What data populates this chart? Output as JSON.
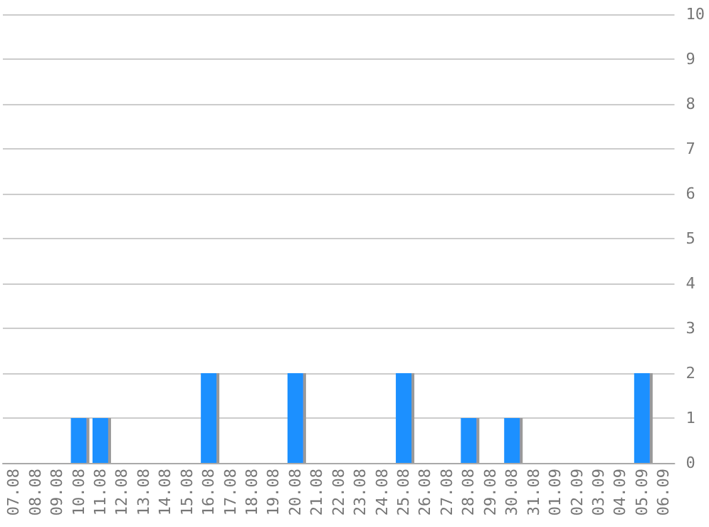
{
  "chart_data": {
    "type": "bar",
    "categories": [
      "07.08",
      "08.08",
      "09.08",
      "10.08",
      "11.08",
      "12.08",
      "13.08",
      "14.08",
      "15.08",
      "16.08",
      "17.08",
      "18.08",
      "19.08",
      "20.08",
      "21.08",
      "22.08",
      "23.08",
      "24.08",
      "25.08",
      "26.08",
      "27.08",
      "28.08",
      "29.08",
      "30.08",
      "31.08",
      "01.09",
      "02.09",
      "03.09",
      "04.09",
      "05.09",
      "06.09"
    ],
    "values": [
      0,
      0,
      0,
      1,
      1,
      0,
      0,
      0,
      0,
      2,
      0,
      0,
      0,
      2,
      0,
      0,
      0,
      0,
      2,
      0,
      0,
      1,
      0,
      1,
      0,
      0,
      0,
      0,
      0,
      2,
      0
    ],
    "color": "#1e90ff",
    "ylim": [
      0,
      10
    ],
    "yticks": [
      0,
      1,
      2,
      3,
      4,
      5,
      6,
      7,
      8,
      9,
      10
    ],
    "grid": "y"
  }
}
